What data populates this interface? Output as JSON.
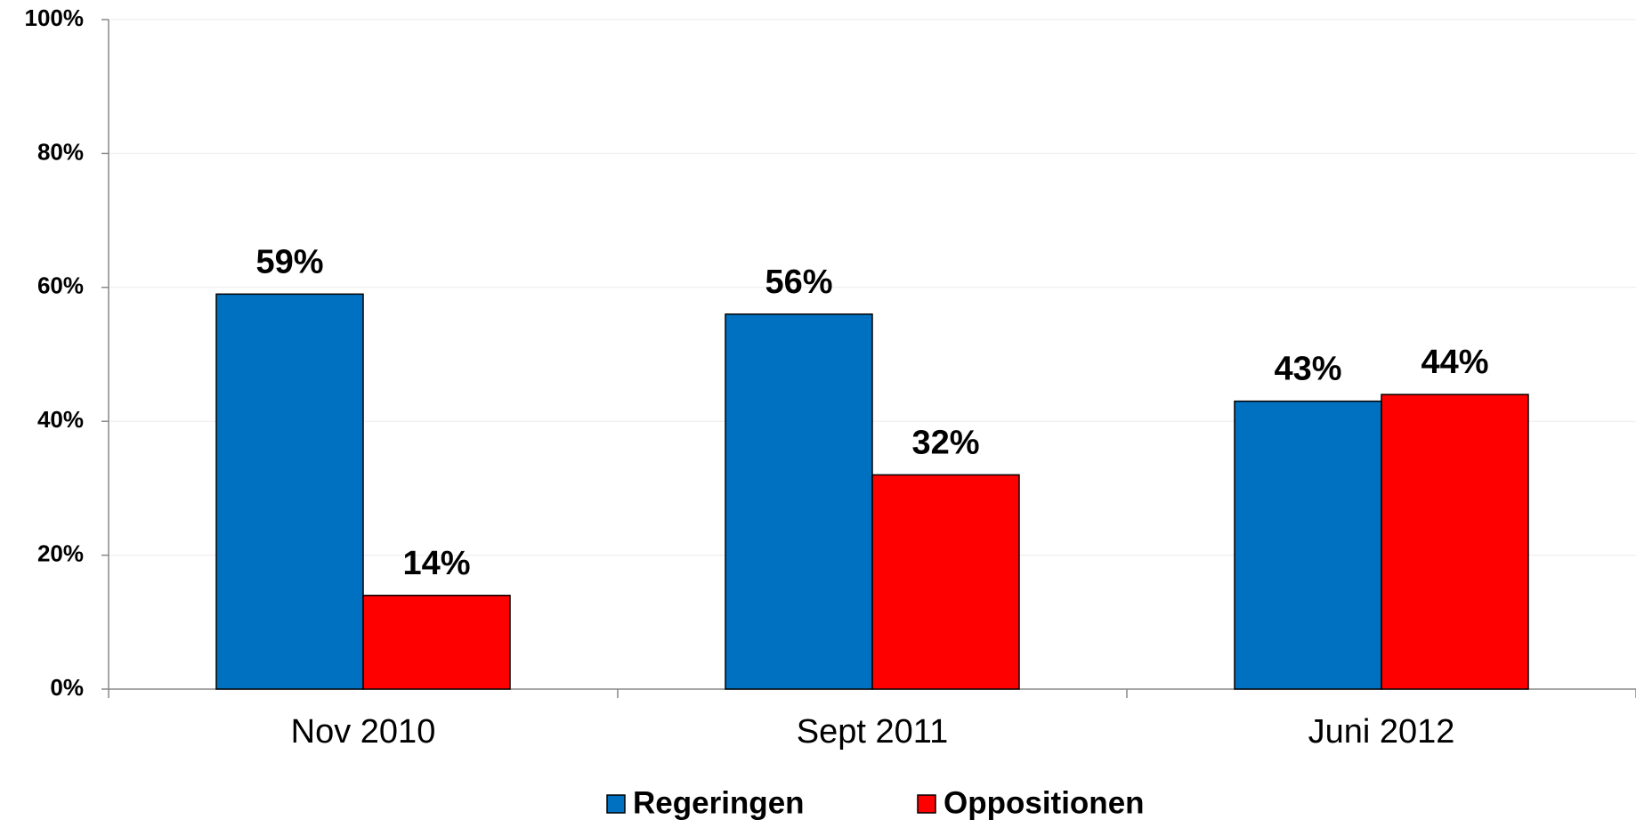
{
  "chart_data": {
    "type": "bar",
    "categories": [
      "Nov 2010",
      "Sept 2011",
      "Juni 2012"
    ],
    "series": [
      {
        "name": "Regeringen",
        "color": "#0070c0",
        "values": [
          59,
          56,
          43
        ],
        "value_labels": [
          "59%",
          "56%",
          "43%"
        ]
      },
      {
        "name": "Oppositionen",
        "color": "#ff0000",
        "values": [
          14,
          32,
          44
        ],
        "value_labels": [
          "14%",
          "32%",
          "44%"
        ]
      }
    ],
    "ylim": [
      0,
      100
    ],
    "yticks": [
      {
        "value": 0,
        "label": "0%"
      },
      {
        "value": 20,
        "label": "20%"
      },
      {
        "value": 40,
        "label": "40%"
      },
      {
        "value": 60,
        "label": "60%"
      },
      {
        "value": 80,
        "label": "80%"
      },
      {
        "value": 100,
        "label": "100%"
      }
    ],
    "grid": true,
    "legend": "bottom"
  }
}
